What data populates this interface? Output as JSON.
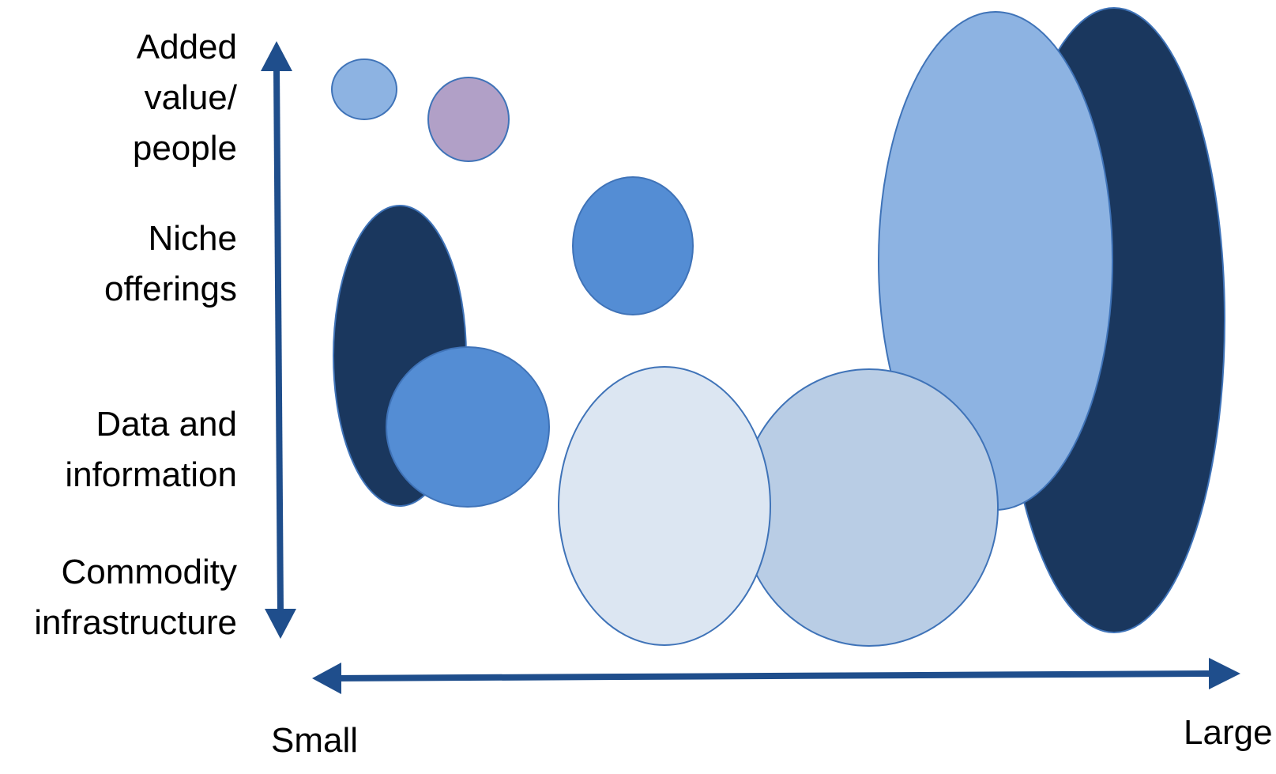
{
  "y_axis": {
    "levels": [
      {
        "lines": [
          "Added",
          "value/",
          "people"
        ]
      },
      {
        "lines": [
          "Niche",
          "offerings"
        ]
      },
      {
        "lines": [
          "Data and",
          "information"
        ]
      },
      {
        "lines": [
          "Commodity",
          "infrastructure"
        ]
      }
    ]
  },
  "x_axis": {
    "min_label": "Small",
    "max_label": "Large"
  },
  "colors": {
    "arrow": "#1f4e8c",
    "outline": "#3f73b8",
    "navy": "#1a375e",
    "medium_blue": "#548dd4",
    "light_blue": "#8db3e2",
    "pale_blue": "#b9cde5",
    "very_pale_blue": "#dce6f2",
    "purple": "#b1a0c7"
  }
}
